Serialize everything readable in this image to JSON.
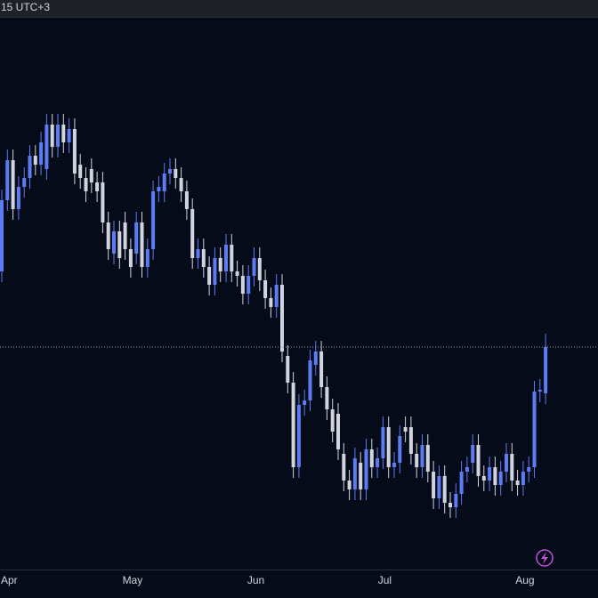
{
  "chart_data": {
    "type": "candlestick",
    "time_label": "15 UTC+3",
    "categories": [
      null,
      "Apr",
      null,
      null,
      null,
      null,
      null,
      null,
      null,
      null,
      null,
      null,
      null,
      null,
      null,
      null,
      null,
      null,
      null,
      null,
      null,
      null,
      null,
      "May",
      null,
      null,
      null,
      null,
      null,
      null,
      null,
      null,
      null,
      null,
      null,
      null,
      null,
      null,
      null,
      null,
      null,
      null,
      null,
      null,
      null,
      "Jun",
      null,
      null,
      null,
      null,
      null,
      null,
      null,
      null,
      null,
      null,
      null,
      null,
      null,
      null,
      null,
      null,
      null,
      null,
      null,
      null,
      null,
      null,
      "Jul",
      null,
      null,
      null,
      null,
      null,
      null,
      null,
      null,
      null,
      null,
      null,
      null,
      null,
      null,
      null,
      null,
      null,
      null,
      null,
      null,
      null,
      null,
      null,
      null,
      "Aug",
      null,
      null,
      null,
      null
    ],
    "open": [
      335,
      415,
      460,
      405,
      430,
      440,
      465,
      455,
      450,
      500,
      475,
      500,
      480,
      495,
      455,
      440,
      450,
      435,
      435,
      390,
      355,
      380,
      390,
      360,
      355,
      390,
      340,
      360,
      425,
      425,
      445,
      450,
      440,
      425,
      405,
      350,
      360,
      340,
      320,
      350,
      335,
      365,
      335,
      330,
      310,
      330,
      350,
      325,
      305,
      295,
      320,
      240,
      210,
      115,
      185,
      190,
      230,
      245,
      205,
      180,
      175,
      130,
      100,
      90,
      120,
      90,
      135,
      115,
      125,
      160,
      115,
      120,
      160,
      160,
      130,
      115,
      140,
      110,
      80,
      105,
      75,
      70,
      85,
      110,
      120,
      140,
      105,
      100,
      115,
      95,
      110,
      130,
      100,
      95,
      110,
      115,
      200,
      198
    ],
    "high": [
      427,
      472,
      472,
      442,
      452,
      477,
      477,
      492,
      512,
      512,
      512,
      512,
      507,
      507,
      467,
      452,
      462,
      447,
      447,
      402,
      392,
      392,
      402,
      372,
      402,
      402,
      372,
      437,
      442,
      457,
      462,
      462,
      452,
      437,
      417,
      372,
      372,
      352,
      362,
      362,
      377,
      377,
      347,
      342,
      342,
      362,
      362,
      337,
      317,
      332,
      332,
      252,
      222,
      197,
      202,
      247,
      257,
      257,
      217,
      192,
      187,
      142,
      112,
      137,
      132,
      147,
      147,
      137,
      172,
      172,
      132,
      162,
      172,
      172,
      142,
      152,
      152,
      122,
      117,
      117,
      87,
      97,
      122,
      127,
      152,
      152,
      117,
      127,
      127,
      122,
      142,
      142,
      112,
      122,
      127,
      212,
      214,
      265
    ],
    "low": [
      323,
      403,
      393,
      393,
      418,
      428,
      443,
      443,
      438,
      463,
      463,
      468,
      468,
      433,
      428,
      413,
      423,
      413,
      378,
      348,
      343,
      338,
      348,
      328,
      343,
      328,
      328,
      348,
      413,
      413,
      433,
      428,
      413,
      393,
      338,
      338,
      328,
      308,
      308,
      323,
      323,
      323,
      318,
      298,
      298,
      318,
      313,
      293,
      283,
      283,
      233,
      198,
      103,
      103,
      173,
      178,
      218,
      193,
      168,
      143,
      123,
      88,
      78,
      78,
      78,
      78,
      103,
      103,
      113,
      103,
      103,
      108,
      143,
      118,
      103,
      103,
      98,
      68,
      68,
      63,
      58,
      58,
      73,
      98,
      108,
      93,
      88,
      88,
      83,
      83,
      98,
      88,
      83,
      83,
      98,
      103,
      188,
      186
    ],
    "close": [
      415,
      460,
      405,
      430,
      440,
      465,
      455,
      480,
      500,
      475,
      500,
      480,
      495,
      445,
      440,
      425,
      435,
      425,
      390,
      360,
      380,
      350,
      360,
      340,
      390,
      340,
      360,
      425,
      430,
      445,
      450,
      440,
      425,
      405,
      350,
      360,
      340,
      320,
      350,
      335,
      365,
      335,
      330,
      310,
      330,
      350,
      325,
      305,
      295,
      320,
      245,
      210,
      115,
      185,
      190,
      235,
      245,
      205,
      180,
      155,
      135,
      100,
      90,
      125,
      90,
      135,
      115,
      125,
      160,
      115,
      120,
      150,
      155,
      130,
      115,
      140,
      110,
      80,
      105,
      75,
      70,
      85,
      110,
      115,
      140,
      105,
      100,
      115,
      95,
      110,
      130,
      100,
      95,
      110,
      115,
      200,
      202,
      250
    ],
    "up_color": "#5b7cf2",
    "down_color": "#d1d4dc",
    "ylim": [
      0,
      620
    ]
  }
}
